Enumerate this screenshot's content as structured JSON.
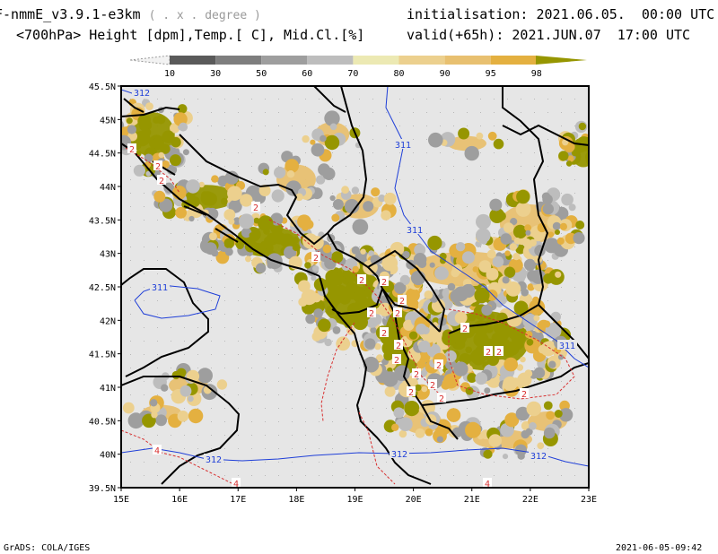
{
  "header": {
    "model": "F-nmmE_v3.9.1-e3km",
    "model_sub": "( . x . degree )",
    "fields": "<700hPa> Height [dpm],Temp.[ C], Mid.Cl.[%]",
    "init_label": "initialisation:",
    "init_value": "2021.06.05.  00:00 UTC",
    "valid_label": "valid(+65h):",
    "valid_value": "2021.JUN.07  17:00 UTC"
  },
  "legend": {
    "ticks": [
      "10",
      "30",
      "50",
      "60",
      "70",
      "80",
      "90",
      "95",
      "98"
    ],
    "colors": [
      "#5a5a5a",
      "#7e7e7e",
      "#9e9e9e",
      "#bdbdbd",
      "#ece9b3",
      "#ecd08e",
      "#e8c070",
      "#e4b040",
      "#969600"
    ]
  },
  "axes": {
    "lat_labels": [
      "45.5N",
      "45N",
      "44.5N",
      "44N",
      "43.5N",
      "43N",
      "42.5N",
      "42N",
      "41.5N",
      "41N",
      "40.5N",
      "40N",
      "39.5N"
    ],
    "lon_labels": [
      "15E",
      "16E",
      "17E",
      "18E",
      "19E",
      "20E",
      "21E",
      "22E",
      "23E"
    ]
  },
  "contours": {
    "height_labels": [
      "312",
      "311",
      "311",
      "311",
      "311",
      "312",
      "312",
      "312"
    ],
    "temp_labels": [
      "2",
      "2",
      "2",
      "2",
      "2",
      "2",
      "2",
      "2",
      "2",
      "2",
      "2",
      "2",
      "2",
      "2",
      "2",
      "2",
      "2",
      "2",
      "2",
      "2",
      "2",
      "2",
      "4",
      "4",
      "4"
    ]
  },
  "footer": {
    "left": "GrADS: COLA/IGES",
    "right": "2021-06-05-09:42"
  },
  "colors": {
    "land_bg": "#e6e6e6",
    "height_contour": "#1f3fd8",
    "temp_contour": "#d83030",
    "olive": "#969600"
  }
}
